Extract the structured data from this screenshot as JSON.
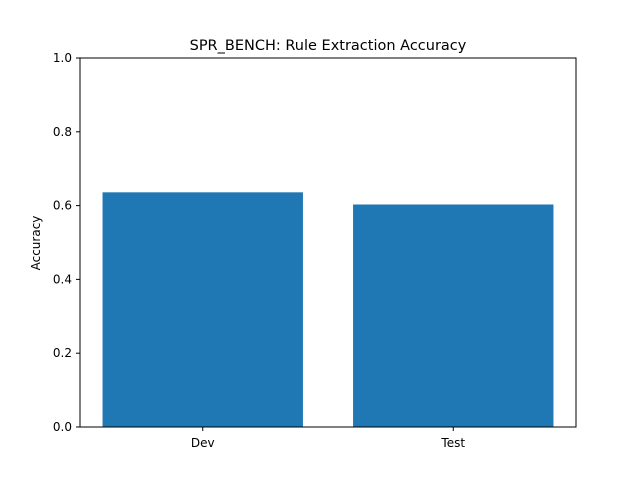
{
  "chart_data": {
    "type": "bar",
    "title": "SPR_BENCH: Rule Extraction Accuracy",
    "xlabel": "",
    "ylabel": "Accuracy",
    "categories": [
      "Dev",
      "Test"
    ],
    "values": [
      0.636,
      0.603
    ],
    "ylim": [
      0,
      1.0
    ],
    "yticks": [
      "0.0",
      "0.2",
      "0.4",
      "0.6",
      "0.8",
      "1.0"
    ],
    "grid": false,
    "bar_color": "#1f77b4"
  }
}
